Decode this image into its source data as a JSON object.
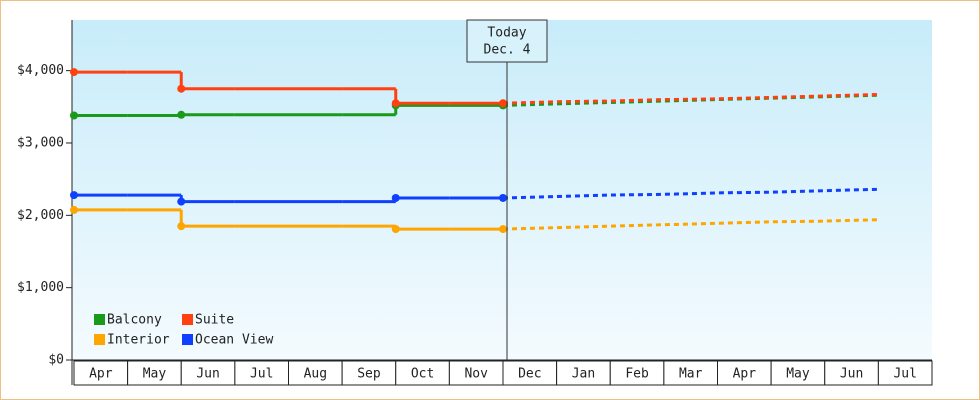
{
  "chart_data": {
    "type": "step-line",
    "categories": [
      "Apr",
      "May",
      "Jun",
      "Jul",
      "Aug",
      "Sep",
      "Oct",
      "Nov",
      "Dec",
      "Jan",
      "Feb",
      "Mar",
      "Apr",
      "May",
      "Jun",
      "Jul"
    ],
    "projected_from": "Dec",
    "today": {
      "label": "Today",
      "date": "Dec. 4"
    },
    "series": [
      {
        "name": "Balcony",
        "color": "#1a9a1a",
        "values": [
          3380,
          3380,
          3390,
          3390,
          3390,
          3390,
          3520,
          3520,
          3520,
          3540,
          3560,
          3580,
          3600,
          3620,
          3640,
          3660
        ]
      },
      {
        "name": "Suite",
        "color": "#ff4010",
        "values": [
          3980,
          3980,
          3750,
          3750,
          3750,
          3750,
          3550,
          3550,
          3550,
          3570,
          3580,
          3600,
          3610,
          3630,
          3650,
          3670
        ]
      },
      {
        "name": "Interior",
        "color": "#ffa500",
        "values": [
          2075,
          2075,
          1850,
          1850,
          1850,
          1850,
          1810,
          1810,
          1810,
          1830,
          1850,
          1870,
          1890,
          1910,
          1920,
          1940
        ]
      },
      {
        "name": "Ocean View",
        "color": "#1040ff",
        "values": [
          2280,
          2280,
          2190,
          2190,
          2190,
          2190,
          2240,
          2240,
          2240,
          2260,
          2280,
          2290,
          2310,
          2320,
          2340,
          2360
        ]
      }
    ],
    "ylim": [
      0,
      4700
    ],
    "yticks": [
      {
        "value": 0,
        "label": "$0"
      },
      {
        "value": 1000,
        "label": "$1,000"
      },
      {
        "value": 2000,
        "label": "$2,000"
      },
      {
        "value": 3000,
        "label": "$3,000"
      },
      {
        "value": 4000,
        "label": "$4,000"
      }
    ],
    "legend": "lower-left"
  }
}
